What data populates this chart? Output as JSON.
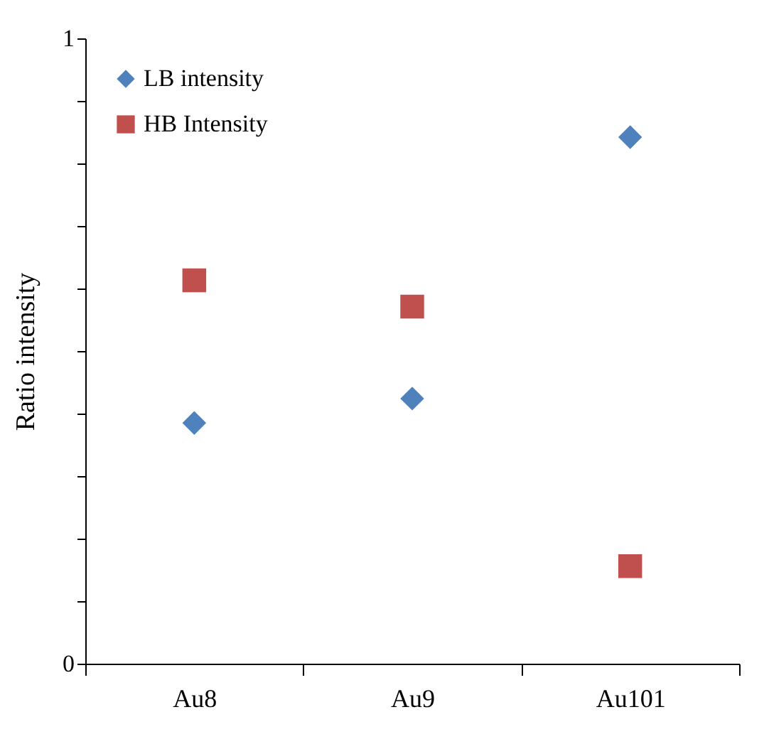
{
  "chart_data": {
    "type": "scatter",
    "ylabel": "Ratio intensity",
    "categories": [
      "Au8",
      "Au9",
      "Au101"
    ],
    "series": [
      {
        "name": "LB intensity",
        "color": "#4f81bd",
        "marker": "diamond",
        "values": [
          0.385,
          0.424,
          0.842
        ]
      },
      {
        "name": "HB Intensity",
        "color": "#c0504d",
        "marker": "square",
        "values": [
          0.613,
          0.571,
          0.156
        ]
      }
    ],
    "ylim": [
      0,
      1
    ],
    "yticks": [
      0,
      {
        "value": 0.1,
        "label": null
      },
      {
        "value": 0.2,
        "label": null
      },
      {
        "value": 0.3,
        "label": null
      },
      {
        "value": 0.4,
        "label": null
      },
      {
        "value": 0.5,
        "label": null
      },
      {
        "value": 0.6,
        "label": null
      },
      {
        "value": 0.7,
        "label": null
      },
      {
        "value": 0.8,
        "label": null
      },
      {
        "value": 0.9,
        "label": null
      },
      1
    ],
    "grid": false,
    "legend": "top left"
  }
}
